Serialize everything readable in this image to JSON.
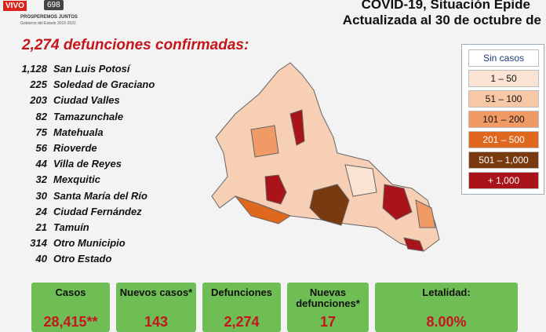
{
  "header": {
    "live": "VIVO",
    "viewers": "698",
    "logo_text": "PROSPEREMOS JUNTOS",
    "logo_subtext": "Gobierno del Estado 2015-2021",
    "title_line1": "COVID-19, Situación Epide",
    "title_line2": "Actualizada al 30 de octubre de"
  },
  "headline": "2,274 defunciones confirmadas:",
  "list": [
    {
      "count": "1,128",
      "place": "San Luis Potosí"
    },
    {
      "count": "225",
      "place": "Soledad de Graciano"
    },
    {
      "count": "203",
      "place": "Ciudad Valles"
    },
    {
      "count": "82",
      "place": "Tamazunchale"
    },
    {
      "count": "75",
      "place": "Matehuala"
    },
    {
      "count": "56",
      "place": "Rioverde"
    },
    {
      "count": "44",
      "place": "Villa de Reyes"
    },
    {
      "count": "32",
      "place": "Mexquitic"
    },
    {
      "count": "30",
      "place": "Santa María del Río"
    },
    {
      "count": "24",
      "place": "Ciudad Fernández"
    },
    {
      "count": "21",
      "place": "Tamuín"
    },
    {
      "count": "314",
      "place": "Otro Municipio"
    },
    {
      "count": "40",
      "place": "Otro Estado"
    }
  ],
  "legend": [
    {
      "label": "Sin casos",
      "color": "#ffffff",
      "text_color": "#1a3a7a"
    },
    {
      "label": "1 – 50",
      "color": "#fbe3d3",
      "text_color": "#111111"
    },
    {
      "label": "51 – 100",
      "color": "#f8c7a6",
      "text_color": "#111111"
    },
    {
      "label": "101 – 200",
      "color": "#f09a66",
      "text_color": "#111111"
    },
    {
      "label": "201 – 500",
      "color": "#e0681e",
      "text_color": "#ffffff"
    },
    {
      "label": "501 – 1,000",
      "color": "#7a3a10",
      "text_color": "#ffffff"
    },
    {
      "label": "+ 1,000",
      "color": "#a8141a",
      "text_color": "#ffffff"
    }
  ],
  "stats": [
    {
      "label": "Casos",
      "value": "28,415**"
    },
    {
      "label": "Nuevos casos*",
      "value": "143"
    },
    {
      "label": "Defunciones",
      "value": "2,274"
    },
    {
      "label": "Nuevas defunciones*",
      "value": "17"
    },
    {
      "label": "Letalidad:",
      "value": "8.00%"
    }
  ]
}
